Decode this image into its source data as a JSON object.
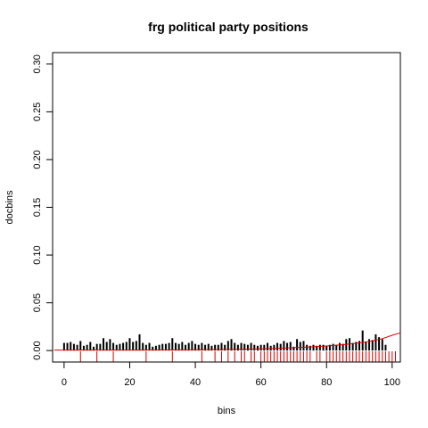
{
  "chart_data": {
    "type": "bar",
    "title": "frg political party positions",
    "xlabel": "bins",
    "ylabel": "docbins",
    "xlim": [
      -3.5,
      102.5
    ],
    "ylim": [
      -0.012,
      0.312
    ],
    "xticks": [
      0,
      20,
      40,
      60,
      80,
      100
    ],
    "xtick_labels": [
      "0",
      "20",
      "40",
      "60",
      "80",
      "100"
    ],
    "yticks": [
      0.0,
      0.05,
      0.1,
      0.15,
      0.2,
      0.25,
      0.3
    ],
    "ytick_labels": [
      "0.00",
      "0.05",
      "0.10",
      "0.15",
      "0.20",
      "0.25",
      "0.30"
    ],
    "bar_color": "#000000",
    "curve_color": "#dd0000",
    "rug_color": "#dd0000",
    "grid": false,
    "series": [
      {
        "x": [
          0,
          1,
          2,
          3,
          4,
          5,
          6,
          7,
          8,
          9,
          10,
          11,
          12,
          13,
          14,
          15,
          16,
          17,
          18,
          19,
          20,
          21,
          22,
          23,
          24,
          25,
          26,
          27,
          28,
          29,
          30,
          31,
          32,
          33,
          34,
          35,
          36,
          37,
          38,
          39,
          40,
          41,
          42,
          43,
          44,
          45,
          46,
          47,
          48,
          49,
          50,
          51,
          52,
          53,
          54,
          55,
          56,
          57,
          58,
          59,
          60,
          61,
          62,
          63,
          64,
          65,
          66,
          67,
          68,
          69,
          70,
          71,
          72,
          73,
          74,
          75,
          76,
          77,
          78,
          79,
          80,
          81,
          82,
          83,
          84,
          85,
          86,
          87,
          88,
          89,
          90,
          91,
          92,
          93,
          94,
          95,
          96,
          97,
          98,
          99,
          100
        ],
        "values": [
          0.008,
          0.008,
          0.009,
          0.007,
          0.006,
          0.01,
          0.005,
          0.006,
          0.009,
          0.004,
          0.007,
          0.007,
          0.013,
          0.009,
          0.012,
          0.008,
          0.006,
          0.007,
          0.008,
          0.009,
          0.013,
          0.009,
          0.01,
          0.017,
          0.008,
          0.006,
          0.008,
          0.004,
          0.005,
          0.006,
          0.007,
          0.007,
          0.008,
          0.013,
          0.008,
          0.007,
          0.009,
          0.006,
          0.008,
          0.01,
          0.007,
          0.006,
          0.008,
          0.006,
          0.007,
          0.005,
          0.006,
          0.006,
          0.008,
          0.006,
          0.01,
          0.012,
          0.008,
          0.006,
          0.008,
          0.007,
          0.006,
          0.008,
          0.006,
          0.005,
          0.006,
          0.006,
          0.008,
          0.005,
          0.006,
          0.008,
          0.007,
          0.01,
          0.008,
          0.009,
          0.004,
          0.012,
          0.009,
          0.01,
          0.006,
          0.005,
          0.006,
          0.005,
          0.006,
          0.006,
          0.005,
          0.006,
          0.007,
          0.006,
          0.008,
          0.007,
          0.012,
          0.013,
          0.008,
          0.009,
          0.01,
          0.021,
          0.009,
          0.012,
          0.011,
          0.017,
          0.014,
          0.012,
          0.006,
          0,
          0
        ]
      }
    ],
    "curve": {
      "x": [
        -3,
        0,
        10,
        20,
        30,
        40,
        50,
        60,
        65,
        70,
        75,
        80,
        85,
        88,
        91,
        94,
        97,
        100,
        102.5
      ],
      "y": [
        0.0005,
        0.0005,
        0.0005,
        0.0005,
        0.0006,
        0.0008,
        0.0012,
        0.0018,
        0.0023,
        0.003,
        0.0038,
        0.0048,
        0.0062,
        0.0072,
        0.0085,
        0.01,
        0.0125,
        0.016,
        0.0185
      ]
    },
    "rug": [
      5,
      10,
      15,
      25,
      33,
      42,
      46,
      48,
      50,
      52,
      54,
      55,
      57,
      58,
      60,
      61,
      62,
      63,
      64,
      65,
      66,
      67,
      68,
      69,
      70,
      71,
      72,
      73,
      74,
      75,
      77,
      78,
      80,
      81,
      82,
      83,
      84,
      85,
      86,
      87,
      88,
      89,
      90,
      91,
      92,
      93,
      94,
      95,
      96,
      97,
      98,
      99,
      100,
      101
    ]
  }
}
